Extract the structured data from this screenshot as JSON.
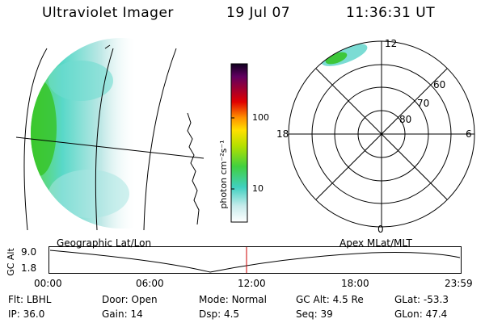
{
  "header": {
    "title": "Ultraviolet Imager",
    "date": "19 Jul 07",
    "time": "11:36:31 UT"
  },
  "colorbar": {
    "unit_label": "photon cm⁻²s⁻¹",
    "ticks": [
      "100",
      "10"
    ]
  },
  "polar": {
    "mlt_labels": {
      "top": "12",
      "left": "18",
      "right": "6",
      "bottom": "0"
    },
    "lat_labels": [
      "60",
      "70",
      "80"
    ]
  },
  "timeline": {
    "left_label": "Geographic Lat/Lon",
    "right_label": "Apex MLat/MLT",
    "axis_title": "GC Alt",
    "y_ticks": [
      "9.0",
      "1.8"
    ],
    "x_ticks": [
      "00:00",
      "06:00",
      "12:00",
      "18:00",
      "23:59"
    ],
    "marker_color": "#cc0000"
  },
  "info": {
    "row1": [
      {
        "label": "Flt:",
        "value": "LBHL"
      },
      {
        "label": "Door:",
        "value": "Open"
      },
      {
        "label": "Mode:",
        "value": "Normal"
      },
      {
        "label": "GC Alt:",
        "value": "4.5 Re"
      },
      {
        "label": "GLat:",
        "value": "-53.3"
      }
    ],
    "row2": [
      {
        "label": "IP:",
        "value": "36.0"
      },
      {
        "label": "Gain:",
        "value": "14"
      },
      {
        "label": "Dsp:",
        "value": "4.5"
      },
      {
        "label": "Seq:",
        "value": "39"
      },
      {
        "label": "GLon:",
        "value": "47.4"
      }
    ]
  }
}
